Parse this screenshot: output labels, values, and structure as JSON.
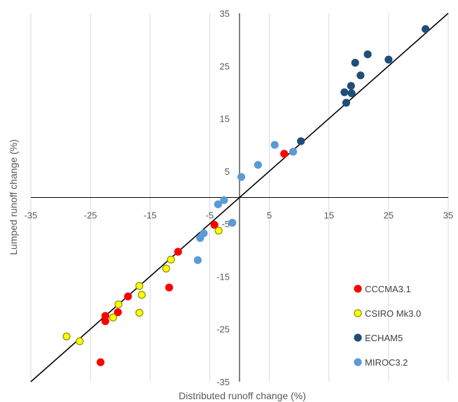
{
  "chart_data": {
    "type": "scatter",
    "title": "",
    "xlabel": "Distributed runoff change (%)",
    "ylabel": "Lumped runoff change (%)",
    "xlim": [
      -35,
      35
    ],
    "ylim": [
      -35,
      35
    ],
    "x_ticks": [
      -35,
      -25,
      -15,
      -5,
      5,
      15,
      25,
      35
    ],
    "y_ticks": [
      -35,
      -25,
      -15,
      -5,
      5,
      15,
      25,
      35
    ],
    "x_tick_labels": [
      "-35",
      "-25",
      "-15",
      "-5",
      "5",
      "15",
      "25",
      "35"
    ],
    "y_tick_labels": [
      "-35",
      "-25",
      "-15",
      "-5",
      "5",
      "15",
      "25",
      "35"
    ],
    "grid": "vertical",
    "reference_line": "1:1",
    "legend_position": "bottom-right",
    "series": [
      {
        "name": "CCCMA3.1",
        "color": "#ff0000",
        "edge": "#ff0000",
        "points": [
          {
            "x": 7.5,
            "y": 8.3
          },
          {
            "x": -4.2,
            "y": -5.2
          },
          {
            "x": -10.3,
            "y": -10.3
          },
          {
            "x": -11.8,
            "y": -17.1
          },
          {
            "x": -18.7,
            "y": -18.8
          },
          {
            "x": -20.4,
            "y": -21.8
          },
          {
            "x": -22.5,
            "y": -22.5
          },
          {
            "x": -22.5,
            "y": -23.5
          },
          {
            "x": -23.3,
            "y": -31.3
          }
        ]
      },
      {
        "name": "CSIRO Mk3.0",
        "color": "#ffff00",
        "edge": "#8c8c00",
        "points": [
          {
            "x": -3.5,
            "y": -6.3
          },
          {
            "x": -11.5,
            "y": -11.8
          },
          {
            "x": -12.3,
            "y": -13.5
          },
          {
            "x": -16.8,
            "y": -16.8
          },
          {
            "x": -16.4,
            "y": -18.5
          },
          {
            "x": -20.3,
            "y": -20.3
          },
          {
            "x": -21.2,
            "y": -22.8
          },
          {
            "x": -16.8,
            "y": -21.9
          },
          {
            "x": -29.0,
            "y": -26.4
          },
          {
            "x": -26.8,
            "y": -27.3
          }
        ]
      },
      {
        "name": "ECHAM5",
        "color": "#1f4e79",
        "edge": "#1f4e79",
        "points": [
          {
            "x": 31.2,
            "y": 32.0
          },
          {
            "x": 21.5,
            "y": 27.2
          },
          {
            "x": 19.4,
            "y": 25.6
          },
          {
            "x": 25.0,
            "y": 26.2
          },
          {
            "x": 20.3,
            "y": 23.2
          },
          {
            "x": 18.7,
            "y": 21.2
          },
          {
            "x": 17.6,
            "y": 20.0
          },
          {
            "x": 18.8,
            "y": 19.8
          },
          {
            "x": 17.9,
            "y": 18.0
          },
          {
            "x": 10.3,
            "y": 10.7
          }
        ]
      },
      {
        "name": "MIROC3.2",
        "color": "#5b9bd5",
        "edge": "#5b9bd5",
        "points": [
          {
            "x": 5.9,
            "y": 10.0
          },
          {
            "x": 9.0,
            "y": 8.7
          },
          {
            "x": 3.1,
            "y": 6.2
          },
          {
            "x": 0.3,
            "y": 3.9
          },
          {
            "x": -2.6,
            "y": -0.5
          },
          {
            "x": -3.6,
            "y": -1.3
          },
          {
            "x": -1.2,
            "y": -4.8
          },
          {
            "x": -6.0,
            "y": -6.8
          },
          {
            "x": -6.6,
            "y": -7.7
          },
          {
            "x": -7.0,
            "y": -11.9
          }
        ]
      }
    ]
  }
}
